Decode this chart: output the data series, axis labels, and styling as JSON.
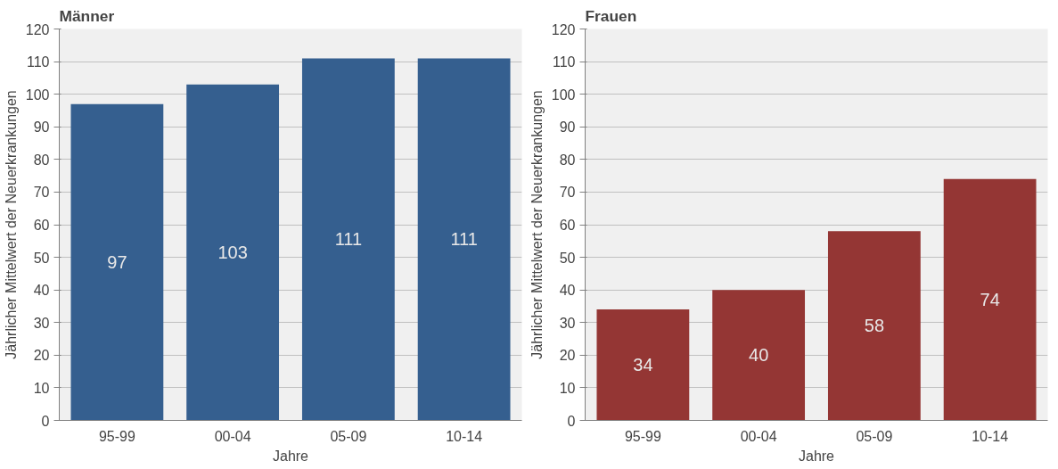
{
  "chart_data": [
    {
      "type": "bar",
      "title": "Männer",
      "xlabel": "Jahre",
      "ylabel": "Jährlicher Mittelwert der Neuerkrankungen",
      "categories": [
        "95-99",
        "00-04",
        "05-09",
        "10-14"
      ],
      "values": [
        97,
        103,
        111,
        111
      ],
      "color": "#355f8f",
      "ylim": [
        0,
        120
      ],
      "yticks": [
        0,
        10,
        20,
        30,
        40,
        50,
        60,
        70,
        80,
        90,
        100,
        110,
        120
      ],
      "grid": "y",
      "data_labels": true
    },
    {
      "type": "bar",
      "title": "Frauen",
      "xlabel": "Jahre",
      "ylabel": "Jährlicher Mittelwert der Neuerkrankungen",
      "categories": [
        "95-99",
        "00-04",
        "05-09",
        "10-14"
      ],
      "values": [
        34,
        40,
        58,
        74
      ],
      "color": "#943634",
      "ylim": [
        0,
        120
      ],
      "yticks": [
        0,
        10,
        20,
        30,
        40,
        50,
        60,
        70,
        80,
        90,
        100,
        110,
        120
      ],
      "grid": "y",
      "data_labels": true
    }
  ]
}
